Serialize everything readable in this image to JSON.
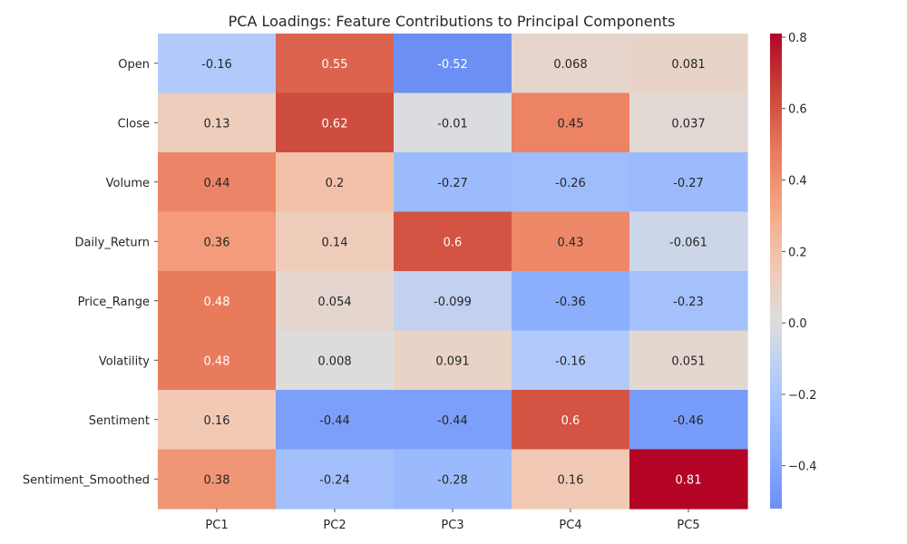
{
  "chart_data": {
    "type": "heatmap",
    "title": "PCA Loadings: Feature Contributions to Principal Components",
    "xlabel": "",
    "ylabel": "",
    "columns": [
      "PC1",
      "PC2",
      "PC3",
      "PC4",
      "PC5"
    ],
    "rows": [
      "Open",
      "Close",
      "Volume",
      "Daily_Return",
      "Price_Range",
      "Volatility",
      "Sentiment",
      "Sentiment_Smoothed"
    ],
    "values": [
      [
        -0.16,
        0.55,
        -0.52,
        0.068,
        0.081
      ],
      [
        0.13,
        0.62,
        -0.01,
        0.45,
        0.037
      ],
      [
        0.44,
        0.2,
        -0.27,
        -0.26,
        -0.27
      ],
      [
        0.36,
        0.14,
        0.6,
        0.43,
        -0.061
      ],
      [
        0.48,
        0.054,
        -0.099,
        -0.36,
        -0.23
      ],
      [
        0.48,
        0.008,
        0.091,
        -0.16,
        0.051
      ],
      [
        0.16,
        -0.44,
        -0.44,
        0.6,
        -0.46
      ],
      [
        0.38,
        -0.24,
        -0.28,
        0.16,
        0.81
      ]
    ],
    "labels": [
      [
        "-0.16",
        "0.55",
        "-0.52",
        "0.068",
        "0.081"
      ],
      [
        "0.13",
        "0.62",
        "-0.01",
        "0.45",
        "0.037"
      ],
      [
        "0.44",
        "0.2",
        "-0.27",
        "-0.26",
        "-0.27"
      ],
      [
        "0.36",
        "0.14",
        "0.6",
        "0.43",
        "-0.061"
      ],
      [
        "0.48",
        "0.054",
        "-0.099",
        "-0.36",
        "-0.23"
      ],
      [
        "0.48",
        "0.008",
        "0.091",
        "-0.16",
        "0.051"
      ],
      [
        "0.16",
        "-0.44",
        "-0.44",
        "0.6",
        "-0.46"
      ],
      [
        "0.38",
        "-0.24",
        "-0.28",
        "0.16",
        "0.81"
      ]
    ],
    "colormap": "coolwarm",
    "center": 0,
    "vmin": -0.52,
    "vmax": 0.81,
    "colorbar": {
      "ticks": [
        -0.4,
        -0.2,
        0.0,
        0.2,
        0.4,
        0.6,
        0.8
      ],
      "tick_labels": [
        "−0.4",
        "−0.2",
        "0.0",
        "0.2",
        "0.4",
        "0.6",
        "0.8"
      ],
      "placement": "right"
    }
  }
}
